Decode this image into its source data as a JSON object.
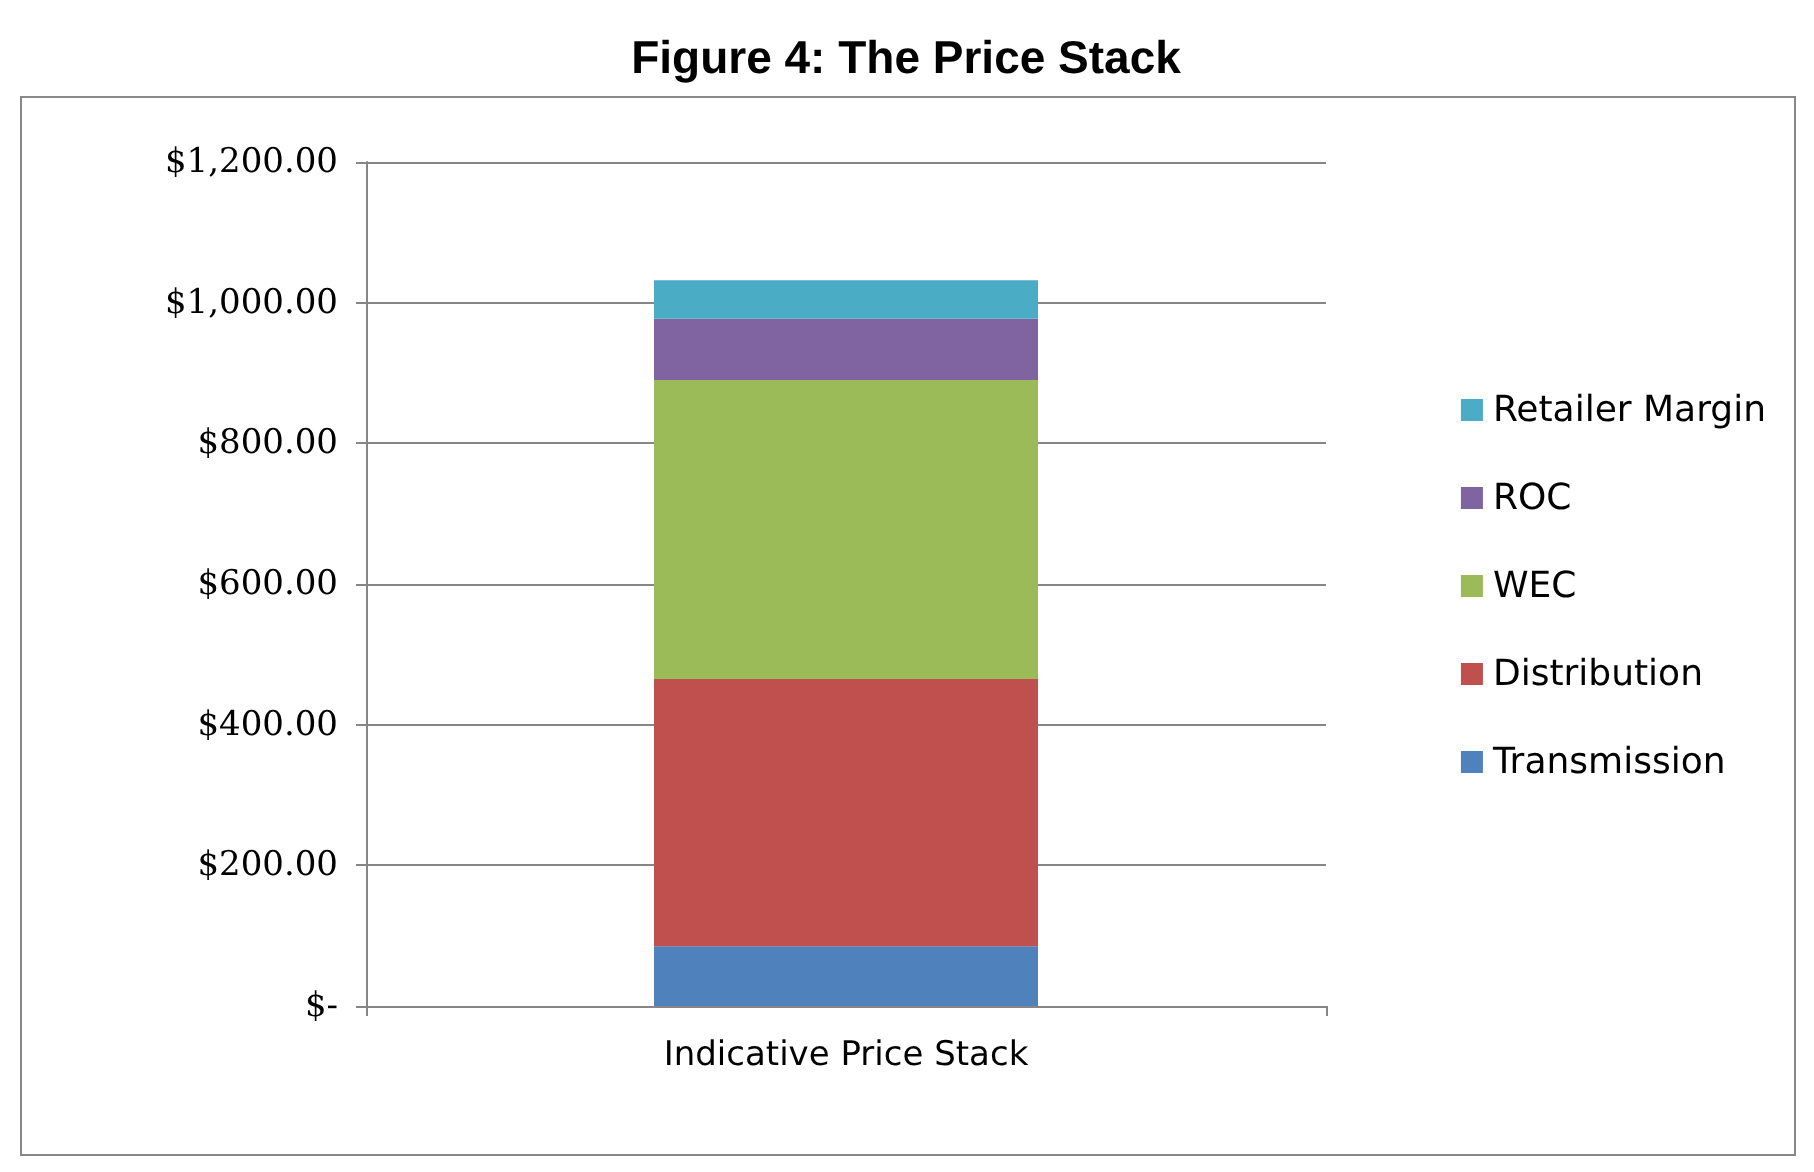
{
  "chart_data": {
    "type": "bar",
    "title": "Figure 4: The Price Stack",
    "stacked": true,
    "categories": [
      "Indicative Price Stack"
    ],
    "series": [
      {
        "name": "Transmission",
        "color": "#4f81bd",
        "values": [
          85
        ]
      },
      {
        "name": "Distribution",
        "color": "#c0504d",
        "values": [
          380
        ]
      },
      {
        "name": "WEC",
        "color": "#9bbb59",
        "values": [
          425
        ]
      },
      {
        "name": "ROC",
        "color": "#8064a2",
        "values": [
          87
        ]
      },
      {
        "name": "Retailer Margin",
        "color": "#4bacc6",
        "values": [
          55
        ]
      }
    ],
    "ylim": [
      0,
      1200
    ],
    "yticks": [
      {
        "value": 0,
        "label": "$-"
      },
      {
        "value": 200,
        "label": "$200.00"
      },
      {
        "value": 400,
        "label": "$400.00"
      },
      {
        "value": 600,
        "label": "$600.00"
      },
      {
        "value": 800,
        "label": "$800.00"
      },
      {
        "value": 1000,
        "label": "$1,000.00"
      },
      {
        "value": 1200,
        "label": "$1,200.00"
      }
    ],
    "grid": "y",
    "legend": "right"
  }
}
